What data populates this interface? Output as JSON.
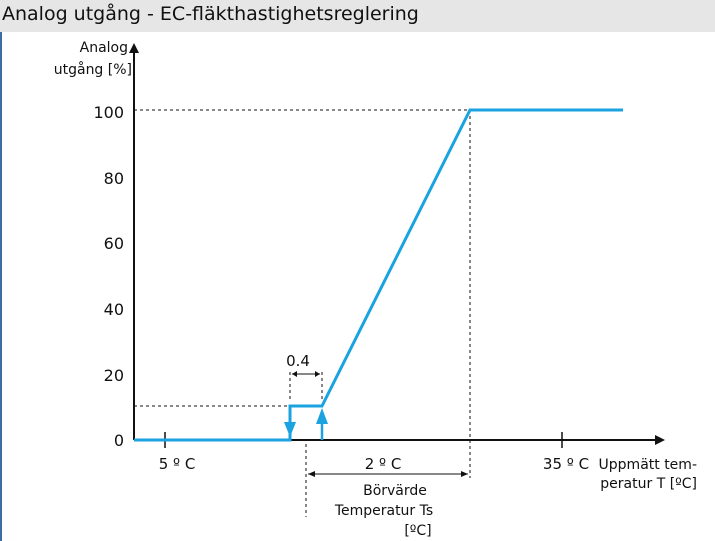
{
  "header": {
    "title": "Analog utgång - EC-fläkthastighetsreglering"
  },
  "colors": {
    "header_bg": "#e6e6e6",
    "curve": "#1aa3e0",
    "axis": "#111111",
    "left_rule": "#3a6ea5"
  },
  "diagram": {
    "y_axis_label": [
      "Analog",
      "utgång [%]"
    ],
    "x_axis_label": [
      "Uppmätt tem-",
      "peratur T  [ºC]"
    ],
    "y_ticks": [
      "0",
      "20",
      "40",
      "60",
      "80",
      "100"
    ],
    "x_tick_left": "5 º C",
    "x_tick_right": "35 º C",
    "hysteresis_label": "0.4",
    "band_label": "2 º C",
    "setpoint_label": [
      "Börvärde",
      "Temperatur Ts",
      "[ºC]"
    ]
  },
  "chart_data": {
    "type": "line",
    "title": "Analog utgång - EC-fläkthastighetsreglering",
    "ylabel": "Analog utgång [%]",
    "xlabel": "Uppmätt temperatur T [ºC]",
    "ylim": [
      0,
      100
    ],
    "series": [
      {
        "points": [
          {
            "x": "min",
            "y": 0
          },
          {
            "x": "Ts - 0.4",
            "y": 0
          },
          {
            "x": "Ts - 0.4",
            "y": 10
          },
          {
            "x": "Ts",
            "y": 10
          },
          {
            "x": "Ts + 2",
            "y": 100
          },
          {
            "x": "max",
            "y": 100
          }
        ]
      }
    ]
  }
}
